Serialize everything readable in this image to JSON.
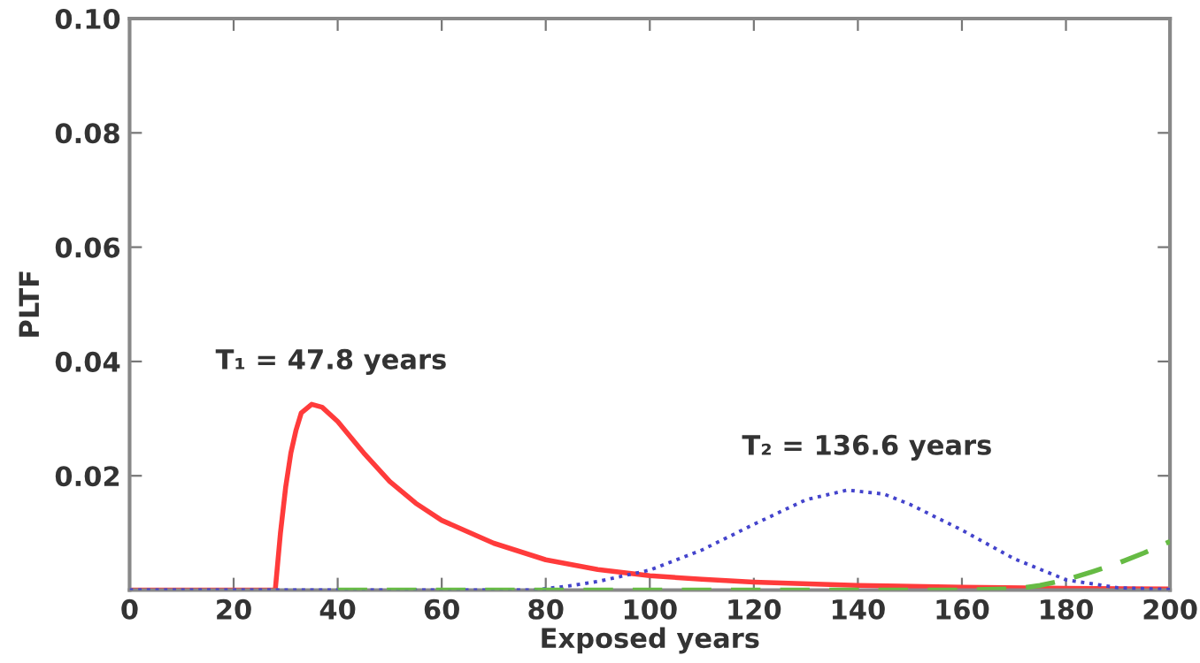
{
  "chart_data": {
    "type": "line",
    "xlabel": "Exposed years",
    "ylabel": "PLTF",
    "xlim": [
      0,
      200
    ],
    "ylim": [
      0,
      0.1
    ],
    "xticks": [
      0,
      20,
      40,
      60,
      80,
      100,
      120,
      140,
      160,
      180,
      200
    ],
    "yticks": [
      {
        "value": 0.02,
        "label": "0.02"
      },
      {
        "value": 0.04,
        "label": "0.04"
      },
      {
        "value": 0.06,
        "label": "0.06"
      },
      {
        "value": 0.08,
        "label": "0.08"
      },
      {
        "value": 0.1,
        "label": "0.10"
      }
    ],
    "grid": false,
    "legend": false,
    "series": [
      {
        "color": "#ff3b3b",
        "line_style": "solid",
        "x": [
          0,
          28,
          29,
          30,
          31,
          32,
          33,
          35,
          37,
          40,
          45,
          50,
          55,
          60,
          70,
          80,
          90,
          100,
          110,
          120,
          140,
          160,
          180,
          200
        ],
        "values": [
          0,
          0,
          0.01,
          0.018,
          0.024,
          0.028,
          0.031,
          0.0325,
          0.032,
          0.0295,
          0.024,
          0.019,
          0.0152,
          0.0122,
          0.0082,
          0.0053,
          0.0036,
          0.0025,
          0.0019,
          0.0014,
          0.0008,
          0.0005,
          0.0003,
          0.0002
        ]
      },
      {
        "color": "#4444cc",
        "line_style": "dotted",
        "x": [
          0,
          78,
          85,
          90,
          100,
          110,
          120,
          130,
          138,
          145,
          150,
          160,
          170,
          180,
          190,
          200
        ],
        "values": [
          0,
          0,
          0.0008,
          0.0015,
          0.0035,
          0.007,
          0.0115,
          0.0158,
          0.0175,
          0.0168,
          0.015,
          0.0105,
          0.0055,
          0.0018,
          0.0004,
          0.0001
        ]
      },
      {
        "color": "#66bb44",
        "line_style": "dashed",
        "x": [
          40,
          160,
          170,
          175,
          180,
          185,
          190,
          195,
          200
        ],
        "values": [
          0,
          0,
          0.0002,
          0.0008,
          0.0018,
          0.0032,
          0.0047,
          0.0065,
          0.0085
        ]
      }
    ],
    "annotations": [
      "T₁ = 47.8 years",
      "T₂ = 136.6 years"
    ]
  }
}
